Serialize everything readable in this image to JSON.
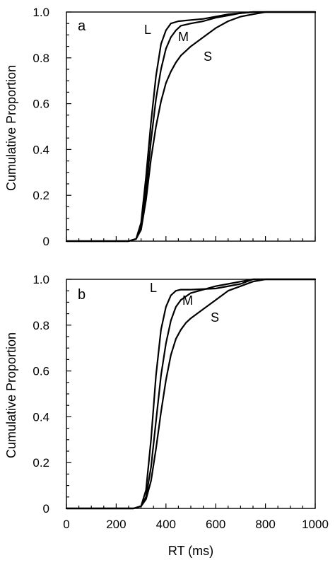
{
  "chart_data": [
    {
      "type": "line",
      "panel_label": "a",
      "ylabel": "Cumulative Proportion",
      "xlabel": "",
      "xlim": [
        0,
        1000
      ],
      "ylim": [
        0,
        1
      ],
      "yticks": [
        "0",
        "0.2",
        "0.4",
        "0.6",
        "0.8",
        "1.0"
      ],
      "xticks": [],
      "series": [
        {
          "name": "L",
          "x": [
            0,
            250,
            280,
            300,
            320,
            340,
            360,
            380,
            400,
            420,
            450,
            500,
            550,
            600,
            650,
            700,
            750,
            1000
          ],
          "y": [
            0,
            0,
            0.01,
            0.08,
            0.28,
            0.52,
            0.72,
            0.86,
            0.92,
            0.95,
            0.96,
            0.965,
            0.97,
            0.98,
            0.99,
            0.995,
            1.0,
            1.0
          ]
        },
        {
          "name": "M",
          "x": [
            0,
            250,
            280,
            300,
            320,
            340,
            360,
            380,
            400,
            420,
            440,
            460,
            500,
            550,
            600,
            650,
            700,
            750,
            1000
          ],
          "y": [
            0,
            0,
            0.01,
            0.06,
            0.22,
            0.44,
            0.62,
            0.75,
            0.84,
            0.89,
            0.92,
            0.94,
            0.95,
            0.96,
            0.975,
            0.985,
            0.995,
            1.0,
            1.0
          ]
        },
        {
          "name": "S",
          "x": [
            0,
            250,
            280,
            300,
            320,
            340,
            360,
            380,
            400,
            420,
            440,
            460,
            480,
            500,
            550,
            600,
            650,
            700,
            750,
            800,
            1000
          ],
          "y": [
            0,
            0,
            0.01,
            0.05,
            0.18,
            0.36,
            0.5,
            0.61,
            0.69,
            0.74,
            0.78,
            0.81,
            0.83,
            0.85,
            0.89,
            0.93,
            0.96,
            0.98,
            0.99,
            1.0,
            1.0
          ]
        }
      ]
    },
    {
      "type": "line",
      "panel_label": "b",
      "ylabel": "Cumulative Proportion",
      "xlabel": "RT (ms)",
      "xlim": [
        0,
        1000
      ],
      "ylim": [
        0,
        1
      ],
      "yticks": [
        "0",
        "0.2",
        "0.4",
        "0.6",
        "0.8",
        "1.0"
      ],
      "xticks": [
        "0",
        "200",
        "400",
        "600",
        "800",
        "1000"
      ],
      "series": [
        {
          "name": "L",
          "x": [
            0,
            270,
            300,
            320,
            340,
            360,
            380,
            400,
            420,
            440,
            460,
            500,
            600,
            700,
            750,
            1000
          ],
          "y": [
            0,
            0,
            0.01,
            0.08,
            0.3,
            0.58,
            0.78,
            0.88,
            0.93,
            0.95,
            0.955,
            0.955,
            0.96,
            0.98,
            1.0,
            1.0
          ]
        },
        {
          "name": "M",
          "x": [
            0,
            270,
            300,
            320,
            340,
            360,
            380,
            400,
            420,
            440,
            460,
            500,
            550,
            600,
            650,
            700,
            750,
            1000
          ],
          "y": [
            0,
            0,
            0.01,
            0.05,
            0.18,
            0.38,
            0.58,
            0.72,
            0.82,
            0.88,
            0.91,
            0.94,
            0.955,
            0.97,
            0.98,
            0.99,
            1.0,
            1.0
          ]
        },
        {
          "name": "S",
          "x": [
            0,
            270,
            300,
            320,
            340,
            360,
            380,
            400,
            420,
            440,
            460,
            480,
            500,
            550,
            600,
            650,
            700,
            750,
            800,
            1000
          ],
          "y": [
            0,
            0,
            0.01,
            0.04,
            0.12,
            0.26,
            0.42,
            0.56,
            0.67,
            0.74,
            0.78,
            0.81,
            0.83,
            0.87,
            0.91,
            0.95,
            0.97,
            0.99,
            1.0,
            1.0
          ]
        }
      ]
    }
  ]
}
